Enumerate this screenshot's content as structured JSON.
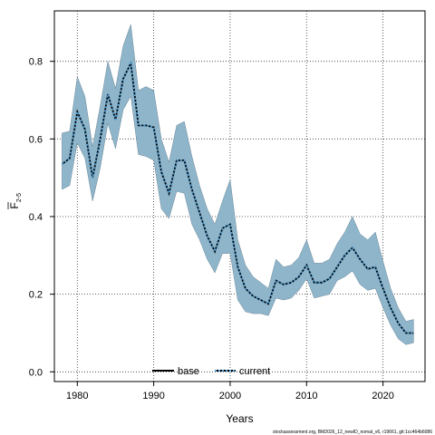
{
  "chart_data": {
    "type": "line",
    "xlabel": "Years",
    "ylabel_main": "F",
    "ylabel_sub": "2-5",
    "xlim": [
      1977,
      2025.5
    ],
    "ylim": [
      -0.025,
      0.93
    ],
    "grid": true,
    "x_ticks": [
      1980,
      1990,
      2000,
      2010,
      2020
    ],
    "y_ticks": [
      0.0,
      0.2,
      0.4,
      0.6,
      0.8
    ],
    "x_tick_labels": [
      "1980",
      "1990",
      "2000",
      "2010",
      "2020"
    ],
    "y_tick_labels": [
      "0.0",
      "0.2",
      "0.4",
      "0.6",
      "0.8"
    ],
    "legend_position": "bottom",
    "legend": [
      {
        "label": "base",
        "color": "#000000",
        "style": "solid"
      },
      {
        "label": "current",
        "color": "#1f4e79",
        "style": "dotted"
      }
    ],
    "band_color": "#8fb5cb",
    "series": [
      {
        "name": "current",
        "x": [
          1978,
          1979,
          1980,
          1981,
          1982,
          1983,
          1984,
          1985,
          1986,
          1987,
          1988,
          1989,
          1990,
          1991,
          1992,
          1993,
          1994,
          1995,
          1996,
          1997,
          1998,
          1999,
          2000,
          2001,
          2002,
          2003,
          2004,
          2005,
          2006,
          2007,
          2008,
          2009,
          2010,
          2011,
          2012,
          2013,
          2014,
          2015,
          2016,
          2017,
          2018,
          2019,
          2020,
          2021,
          2022,
          2023,
          2024
        ],
        "values": [
          0.535,
          0.55,
          0.67,
          0.625,
          0.5,
          0.6,
          0.715,
          0.65,
          0.755,
          0.795,
          0.635,
          0.635,
          0.63,
          0.515,
          0.46,
          0.545,
          0.545,
          0.47,
          0.41,
          0.35,
          0.31,
          0.37,
          0.38,
          0.27,
          0.215,
          0.195,
          0.185,
          0.175,
          0.235,
          0.225,
          0.23,
          0.245,
          0.275,
          0.23,
          0.23,
          0.24,
          0.27,
          0.3,
          0.32,
          0.29,
          0.265,
          0.27,
          0.215,
          0.165,
          0.125,
          0.1,
          0.1
        ],
        "lower": [
          0.47,
          0.48,
          0.59,
          0.55,
          0.44,
          0.525,
          0.64,
          0.575,
          0.675,
          0.71,
          0.56,
          0.555,
          0.545,
          0.42,
          0.395,
          0.465,
          0.46,
          0.38,
          0.34,
          0.29,
          0.255,
          0.305,
          0.305,
          0.185,
          0.155,
          0.15,
          0.15,
          0.145,
          0.19,
          0.185,
          0.19,
          0.21,
          0.24,
          0.19,
          0.195,
          0.2,
          0.235,
          0.245,
          0.26,
          0.225,
          0.21,
          0.215,
          0.165,
          0.12,
          0.085,
          0.07,
          0.075
        ],
        "upper": [
          0.615,
          0.62,
          0.76,
          0.71,
          0.58,
          0.685,
          0.8,
          0.73,
          0.84,
          0.895,
          0.725,
          0.735,
          0.725,
          0.6,
          0.54,
          0.635,
          0.645,
          0.555,
          0.48,
          0.42,
          0.38,
          0.44,
          0.495,
          0.34,
          0.275,
          0.245,
          0.23,
          0.215,
          0.29,
          0.27,
          0.275,
          0.295,
          0.34,
          0.28,
          0.28,
          0.29,
          0.33,
          0.36,
          0.4,
          0.355,
          0.34,
          0.36,
          0.285,
          0.215,
          0.165,
          0.13,
          0.135
        ]
      }
    ]
  },
  "footer": {
    "text": "stockassessment.org, BM2026_12_newID_nomal_v6, r19661, git:1cc464b6086"
  }
}
